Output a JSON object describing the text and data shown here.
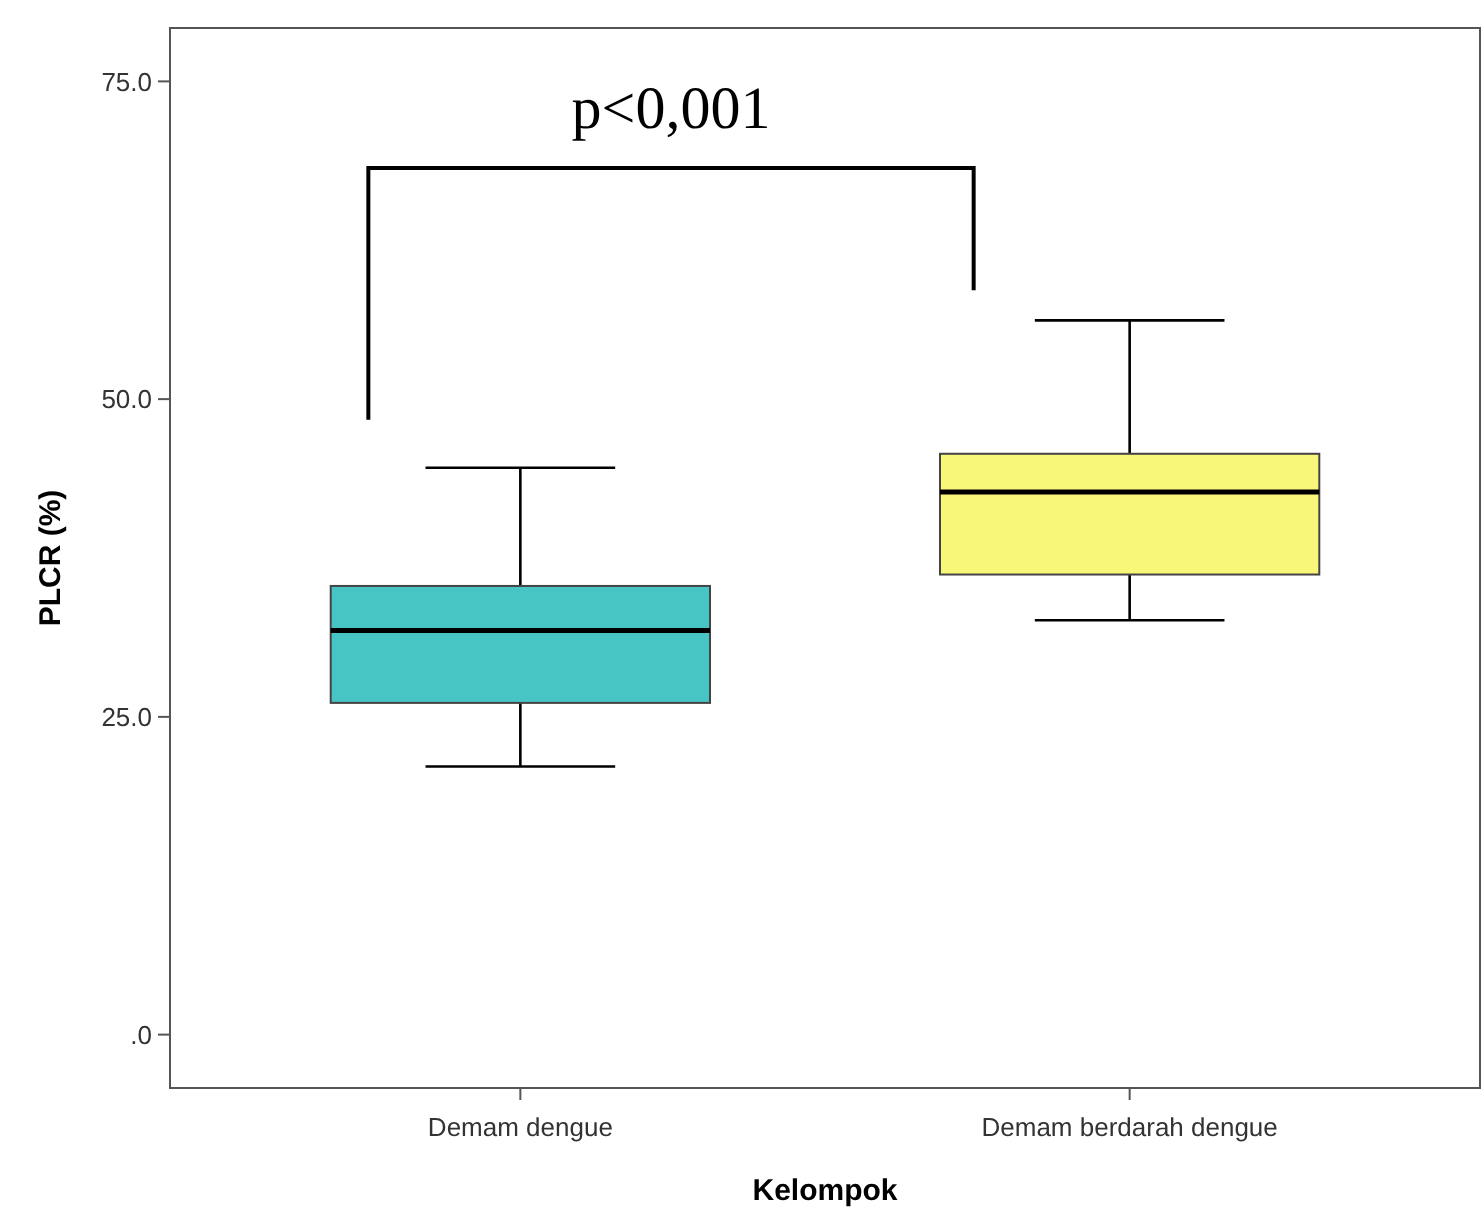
{
  "chart_data": {
    "type": "box",
    "xlabel": "Kelompok",
    "ylabel": "PLCR (%)",
    "categories": [
      "Demam dengue",
      "Demam berdarah dengue"
    ],
    "colors": [
      "#47c4c4",
      "#f8f77a"
    ],
    "boxes": [
      {
        "low": 21.1,
        "q1": 26.1,
        "median": 31.8,
        "q3": 35.3,
        "high": 44.6
      },
      {
        "low": 32.6,
        "q1": 36.2,
        "median": 42.7,
        "q3": 45.7,
        "high": 56.2
      }
    ],
    "ylim": [
      -4.2,
      79.2
    ],
    "yticks": [
      {
        "value": 0,
        "label": ".0"
      },
      {
        "value": 25,
        "label": "25.0"
      },
      {
        "value": 50,
        "label": "50.0"
      },
      {
        "value": 75,
        "label": "75.0"
      }
    ],
    "annotations": [
      "p<0,001"
    ]
  }
}
